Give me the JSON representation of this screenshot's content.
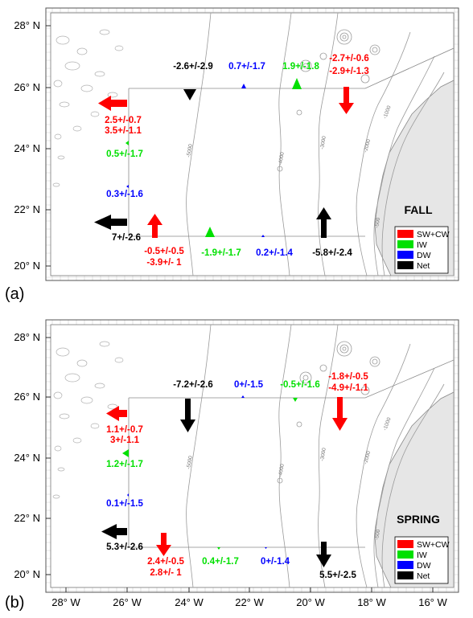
{
  "colors": {
    "sw_cw": "#ff0000",
    "iw": "#00e000",
    "dw": "#0000ff",
    "net": "#000000",
    "land": "#e6e6e6",
    "contour": "#9a9a9a"
  },
  "y_ticks": [
    "28° N",
    "26° N",
    "24° N",
    "22° N",
    "20° N"
  ],
  "x_ticks": [
    "28° W",
    "26° W",
    "24° W",
    "22° W",
    "20° W",
    "18° W",
    "16° W"
  ],
  "contour_labels": [
    "-5000",
    "-4000",
    "-3000",
    "-2000",
    "-1000",
    "-500"
  ],
  "legend": {
    "items": [
      {
        "label": "SW+CW",
        "color": "#ff0000"
      },
      {
        "label": "IW",
        "color": "#00e000"
      },
      {
        "label": "DW",
        "color": "#0000ff"
      },
      {
        "label": "Net",
        "color": "#000000"
      }
    ]
  },
  "panels": [
    {
      "label": "(a)",
      "season": "FALL",
      "labels": {
        "north_net": "-2.6+/-2.9",
        "north_dw": "0.7+/-1.7",
        "north_iw": "1.9+/-1.8",
        "ne_sw_1": "-2.7+/-0.6",
        "ne_sw_2": "-2.9+/-1.3",
        "west_sw_1": "2.5+/-0.7",
        "west_sw_2": "3.5+/-1.1",
        "west_iw": "0.5+/-1.7",
        "west_dw": "0.3+/-1.6",
        "west_net": "7+/-2.6",
        "south_sw_1": "-0.5+/-0.5",
        "south_sw_2": "-3.9+/- 1",
        "south_iw": "-1.9+/-1.7",
        "south_dw": "0.2+/-1.4",
        "south_net": "-5.8+/-2.4"
      }
    },
    {
      "label": "(b)",
      "season": "SPRING",
      "labels": {
        "north_net": "-7.2+/-2.6",
        "north_dw": "0+/-1.5",
        "north_iw": "-0.5+/-1.6",
        "ne_sw_1": "-1.8+/-0.5",
        "ne_sw_2": "-4.9+/-1.1",
        "west_sw_1": "1.1+/-0.7",
        "west_sw_2": "3+/-1.1",
        "west_iw": "1.2+/-1.7",
        "west_dw": "0.1+/-1.5",
        "west_net": "5.3+/-2.6",
        "south_sw_1": "2.4+/-0.5",
        "south_sw_2": "2.8+/- 1",
        "south_iw": "0.4+/-1.7",
        "south_dw": "0+/-1.4",
        "south_net": "5.5+/-2.5"
      }
    }
  ]
}
